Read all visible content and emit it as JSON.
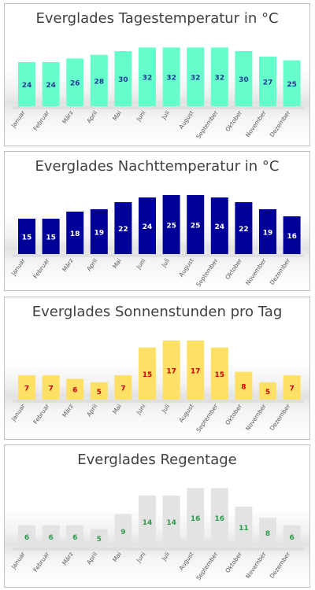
{
  "chart_data": [
    {
      "type": "bar",
      "title": "Everglades Tagestemperatur in °C",
      "categories": [
        "Januar",
        "Februar",
        "März",
        "April",
        "Mai",
        "Juni",
        "Juli",
        "August",
        "September",
        "Oktober",
        "November",
        "Dezember"
      ],
      "values": [
        24,
        24,
        26,
        28,
        30,
        32,
        32,
        32,
        32,
        30,
        27,
        25
      ],
      "bar_color": "#66ffcc",
      "label_color": "#1f3a93",
      "ylim": [
        0,
        36
      ],
      "grid": false,
      "legend": "none"
    },
    {
      "type": "bar",
      "title": "Everglades Nachttemperatur in °C",
      "categories": [
        "Januar",
        "Februar",
        "März",
        "April",
        "Mai",
        "Juni",
        "Juli",
        "August",
        "September",
        "Oktober",
        "November",
        "Dezember"
      ],
      "values": [
        15,
        15,
        18,
        19,
        22,
        24,
        25,
        25,
        24,
        22,
        19,
        16
      ],
      "bar_color": "#000099",
      "label_color": "#ffffff",
      "ylim": [
        0,
        28
      ],
      "grid": false,
      "legend": "none"
    },
    {
      "type": "bar",
      "title": "Everglades Sonnenstunden pro Tag",
      "categories": [
        "Januar",
        "Februar",
        "März",
        "April",
        "Mai",
        "Juni",
        "Juli",
        "August",
        "September",
        "Oktober",
        "November",
        "Dezember"
      ],
      "values": [
        7,
        7,
        6,
        5,
        7,
        15,
        17,
        17,
        15,
        8,
        5,
        7
      ],
      "bar_color": "#ffe066",
      "label_color": "#cc0000",
      "ylim": [
        0,
        19
      ],
      "grid": false,
      "legend": "none"
    },
    {
      "type": "bar",
      "title": "Everglades Regentage",
      "categories": [
        "Januar",
        "Februar",
        "März",
        "April",
        "Mai",
        "Juni",
        "Juli",
        "August",
        "September",
        "Oktober",
        "November",
        "Dezember"
      ],
      "values": [
        6,
        6,
        6,
        5,
        9,
        14,
        14,
        16,
        16,
        11,
        8,
        6
      ],
      "bar_color": "#e3e3e3",
      "label_color": "#2e9a4e",
      "ylim": [
        0,
        17.8
      ],
      "grid": false,
      "legend": "none"
    }
  ]
}
